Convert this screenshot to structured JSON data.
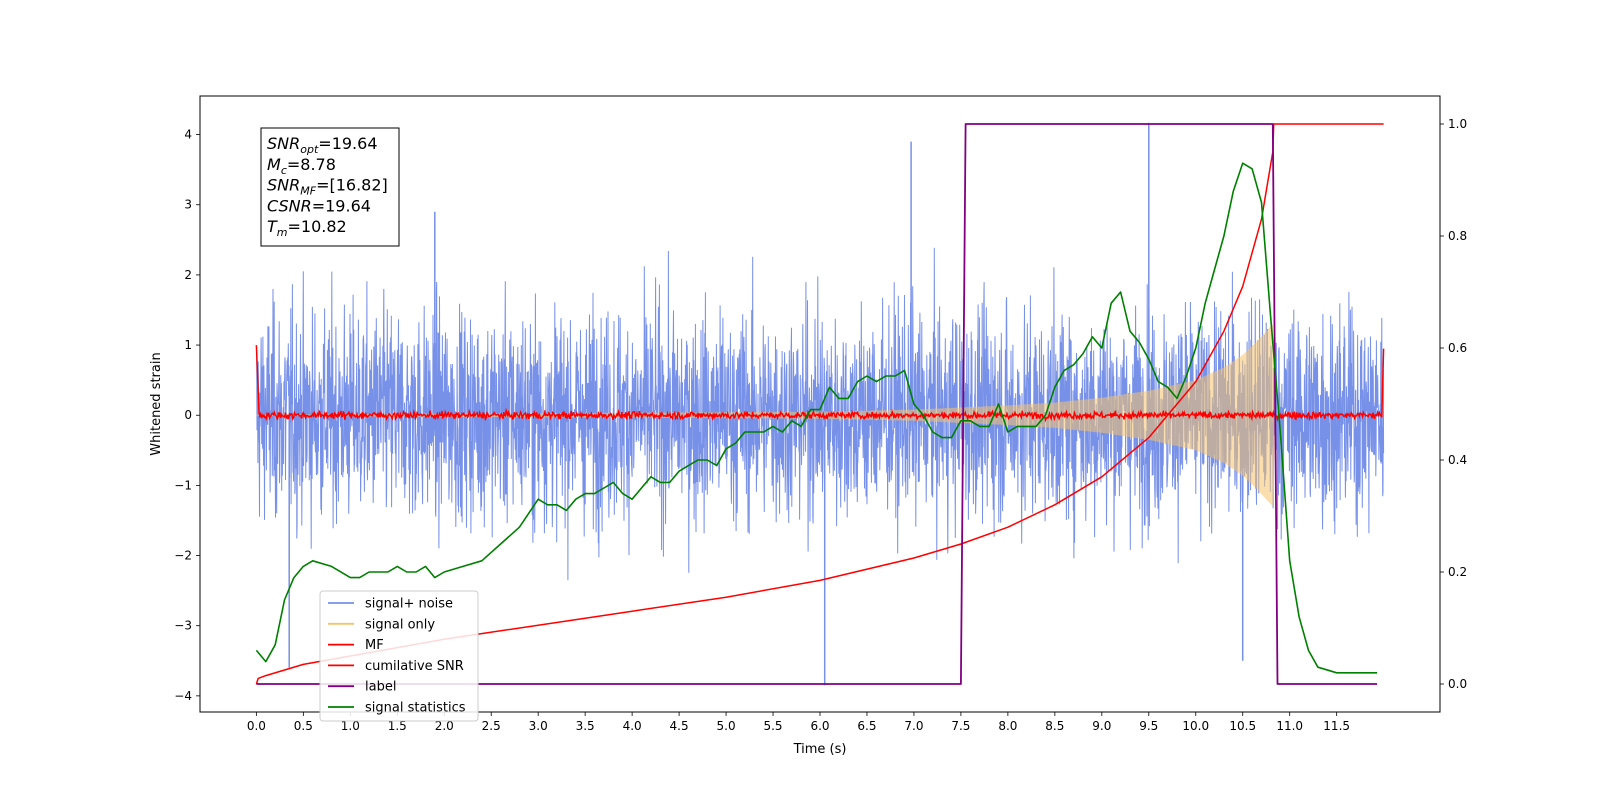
{
  "chart_data": {
    "type": "line",
    "xlabel": "Time (s)",
    "ylabel": "Whitened strain",
    "xlim": [
      -0.6,
      12.6
    ],
    "ylim": [
      -4.23,
      4.55
    ],
    "y2lim": [
      -0.05,
      1.05
    ],
    "x_ticks": [
      0.0,
      0.5,
      1.0,
      1.5,
      2.0,
      2.5,
      3.0,
      3.5,
      4.0,
      4.5,
      5.0,
      5.5,
      6.0,
      6.5,
      7.0,
      7.5,
      8.0,
      8.5,
      9.0,
      9.5,
      10.0,
      10.5,
      11.0,
      11.5
    ],
    "x_tick_labels": [
      "0.0",
      "0.5",
      "1.0",
      "1.5",
      "2.0",
      "2.5",
      "3.0",
      "3.5",
      "4.0",
      "4.5",
      "5.0",
      "5.5",
      "6.0",
      "6.5",
      "7.0",
      "7.5",
      "8.0",
      "8.5",
      "9.0",
      "9.5",
      "10.0",
      "10.5",
      "11.0",
      "11.5"
    ],
    "y_ticks": [
      -4,
      -3,
      -2,
      -1,
      0,
      1,
      2,
      3,
      4
    ],
    "y_tick_labels": [
      "−4",
      "−3",
      "−2",
      "−1",
      "0",
      "1",
      "2",
      "3",
      "4"
    ],
    "y2_ticks": [
      0.0,
      0.2,
      0.4,
      0.6,
      0.8,
      1.0
    ],
    "y2_tick_labels": [
      "0.0",
      "0.2",
      "0.4",
      "0.6",
      "0.8",
      "1.0"
    ],
    "grid": false,
    "legend_position": "lower-left",
    "annotation": [
      {
        "main": "SNR",
        "sub": "opt",
        "value": "=19.64"
      },
      {
        "main": "M",
        "sub": "c",
        "value": "=8.78"
      },
      {
        "main": "SNR",
        "sub": "MF",
        "value": "=[16.82]"
      },
      {
        "main": "CSNR",
        "sub": "",
        "value": "=19.64"
      },
      {
        "main": "T",
        "sub": "m",
        "value": "=10.82"
      }
    ],
    "series": [
      {
        "name": "signal+ noise",
        "axis": "left",
        "color": "#7790e8",
        "description": "whitened noisy strain, approx amplitude +/-2.5 with spikes to +/-4, t=0 to 12",
        "t_range": [
          0.0,
          12.0
        ],
        "approx_envelope": 2.6,
        "peaks": [
          [
            1.9,
            2.9
          ],
          [
            6.97,
            3.9
          ],
          [
            9.5,
            4.17
          ],
          [
            6.05,
            -3.85
          ],
          [
            0.35,
            -3.6
          ],
          [
            10.5,
            -3.5
          ]
        ]
      },
      {
        "name": "signal only",
        "axis": "left",
        "color": "#f5c26b",
        "description": "chirp signal, amplitude grows until merger at ~10.82 s",
        "envelope": {
          "x": [
            0.0,
            6.0,
            7.0,
            8.0,
            8.5,
            9.0,
            9.5,
            10.0,
            10.3,
            10.5,
            10.65,
            10.75,
            10.82,
            10.85
          ],
          "y": [
            0.01,
            0.05,
            0.08,
            0.14,
            0.18,
            0.25,
            0.35,
            0.5,
            0.68,
            0.86,
            1.05,
            1.2,
            1.3,
            0.0
          ]
        }
      },
      {
        "name": "MF",
        "axis": "left",
        "color": "#ff0000",
        "description": "matched-filter output, noise around 0 with amplitude ~0.08, spike to 1.0 at t=0 and 0.95 at t=12"
      },
      {
        "name": "cumilative SNR",
        "axis": "right",
        "color": "#ff0000",
        "x": [
          0.0,
          0.02,
          0.1,
          0.5,
          1.0,
          2.0,
          3.0,
          4.0,
          5.0,
          6.0,
          7.0,
          7.5,
          8.0,
          8.5,
          9.0,
          9.5,
          10.0,
          10.3,
          10.5,
          10.7,
          10.82,
          10.83,
          12.0
        ],
        "y": [
          0.0,
          0.01,
          0.015,
          0.035,
          0.05,
          0.08,
          0.105,
          0.13,
          0.155,
          0.185,
          0.225,
          0.25,
          0.28,
          0.32,
          0.37,
          0.44,
          0.54,
          0.63,
          0.71,
          0.83,
          0.95,
          1.0,
          1.0
        ]
      },
      {
        "name": "label",
        "axis": "right",
        "color": "#800080",
        "x": [
          0.0,
          7.5,
          7.55,
          10.82,
          10.87,
          11.0,
          11.0,
          11.93
        ],
        "y": [
          0.0,
          0.0,
          1.0,
          1.0,
          0.0,
          0.0,
          0.0,
          0.0
        ]
      },
      {
        "name": "signal statistics",
        "axis": "right",
        "color": "#008000",
        "x": [
          0.0,
          0.1,
          0.2,
          0.3,
          0.4,
          0.5,
          0.6,
          0.8,
          1.0,
          1.1,
          1.2,
          1.4,
          1.5,
          1.6,
          1.7,
          1.8,
          1.9,
          2.0,
          2.2,
          2.4,
          2.6,
          2.8,
          3.0,
          3.1,
          3.2,
          3.3,
          3.4,
          3.5,
          3.6,
          3.7,
          3.8,
          3.9,
          4.0,
          4.1,
          4.2,
          4.3,
          4.4,
          4.5,
          4.6,
          4.7,
          4.8,
          4.9,
          5.0,
          5.1,
          5.2,
          5.3,
          5.4,
          5.5,
          5.6,
          5.7,
          5.8,
          5.9,
          6.0,
          6.1,
          6.2,
          6.3,
          6.4,
          6.5,
          6.6,
          6.7,
          6.8,
          6.9,
          7.0,
          7.1,
          7.2,
          7.3,
          7.4,
          7.5,
          7.6,
          7.7,
          7.8,
          7.9,
          8.0,
          8.1,
          8.2,
          8.3,
          8.4,
          8.5,
          8.6,
          8.7,
          8.8,
          8.9,
          9.0,
          9.1,
          9.2,
          9.3,
          9.4,
          9.5,
          9.6,
          9.7,
          9.8,
          9.9,
          10.0,
          10.1,
          10.2,
          10.3,
          10.4,
          10.5,
          10.6,
          10.7,
          10.8,
          10.9,
          11.0,
          11.1,
          11.2,
          11.3,
          11.5,
          11.7,
          11.93
        ],
        "y": [
          0.06,
          0.04,
          0.07,
          0.15,
          0.19,
          0.21,
          0.22,
          0.21,
          0.19,
          0.19,
          0.2,
          0.2,
          0.21,
          0.2,
          0.2,
          0.21,
          0.19,
          0.2,
          0.21,
          0.22,
          0.25,
          0.28,
          0.33,
          0.32,
          0.32,
          0.31,
          0.33,
          0.34,
          0.34,
          0.35,
          0.36,
          0.34,
          0.33,
          0.35,
          0.37,
          0.36,
          0.36,
          0.38,
          0.39,
          0.4,
          0.4,
          0.39,
          0.42,
          0.43,
          0.45,
          0.45,
          0.45,
          0.46,
          0.45,
          0.47,
          0.46,
          0.49,
          0.49,
          0.53,
          0.51,
          0.51,
          0.54,
          0.55,
          0.54,
          0.55,
          0.55,
          0.56,
          0.5,
          0.48,
          0.45,
          0.44,
          0.44,
          0.47,
          0.47,
          0.46,
          0.46,
          0.5,
          0.45,
          0.46,
          0.46,
          0.46,
          0.48,
          0.53,
          0.56,
          0.57,
          0.59,
          0.62,
          0.6,
          0.68,
          0.7,
          0.63,
          0.61,
          0.58,
          0.54,
          0.53,
          0.51,
          0.55,
          0.6,
          0.68,
          0.74,
          0.8,
          0.88,
          0.93,
          0.92,
          0.86,
          0.65,
          0.45,
          0.22,
          0.12,
          0.06,
          0.03,
          0.02,
          0.02,
          0.02
        ]
      }
    ]
  },
  "legend": [
    {
      "label": "signal+ noise",
      "color": "#7790e8"
    },
    {
      "label": "signal only",
      "color": "#f5c26b"
    },
    {
      "label": "MF",
      "color": "#ff0000"
    },
    {
      "label": "cumilative SNR",
      "color": "#ff0000"
    },
    {
      "label": "label",
      "color": "#800080"
    },
    {
      "label": "signal statistics",
      "color": "#008000"
    }
  ]
}
